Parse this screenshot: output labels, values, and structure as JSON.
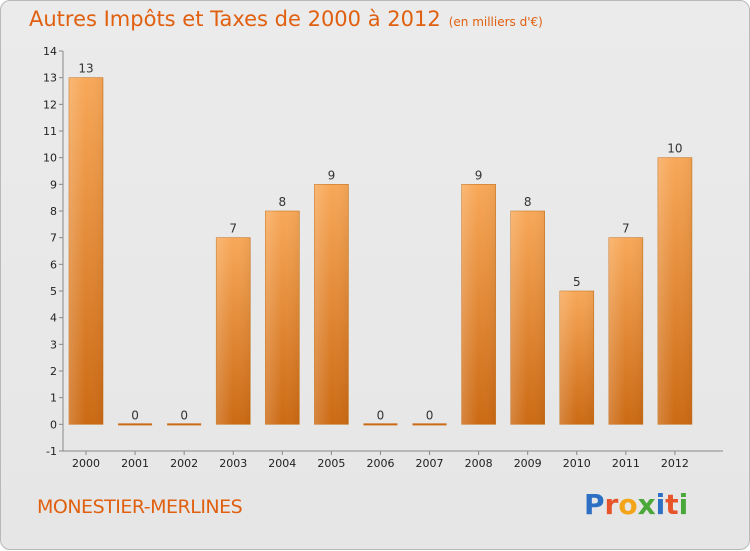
{
  "title": "Autres Impôts et Taxes de 2000 à 2012",
  "unit_label": "(en milliers d'€)",
  "location": "MONESTIER-MERLINES",
  "brand": {
    "text": "Proxiti",
    "letters": [
      {
        "ch": "P",
        "color": "#2d6fc4"
      },
      {
        "ch": "r",
        "color": "#e8542a"
      },
      {
        "ch": "o",
        "color": "#f3a418"
      },
      {
        "ch": "x",
        "color": "#4aa83a"
      },
      {
        "ch": "i",
        "color": "#2d6fc4"
      },
      {
        "ch": "t",
        "color": "#e8542a"
      },
      {
        "ch": "i",
        "color": "#4aa83a"
      }
    ]
  },
  "colors": {
    "title": "#e06010",
    "bar_light": "#f8a858",
    "bar_dark": "#cc6a14"
  },
  "chart_data": {
    "type": "bar",
    "title": "Autres Impôts et Taxes de 2000 à 2012",
    "ylabel": "(en milliers d'€)",
    "xlabel": "",
    "categories": [
      "2000",
      "2001",
      "2002",
      "2003",
      "2004",
      "2005",
      "2006",
      "2007",
      "2008",
      "2009",
      "2010",
      "2011",
      "2012"
    ],
    "values": [
      13,
      0,
      0,
      7,
      8,
      9,
      0,
      0,
      9,
      8,
      5,
      7,
      10
    ],
    "y_ticks": [
      "-1",
      "0",
      "1",
      "2",
      "3",
      "4",
      "5",
      "6",
      "7",
      "8",
      "9",
      "10",
      "11",
      "12",
      "13",
      "14"
    ],
    "ylim": [
      -1,
      14
    ],
    "grid": false,
    "legend": "none"
  }
}
